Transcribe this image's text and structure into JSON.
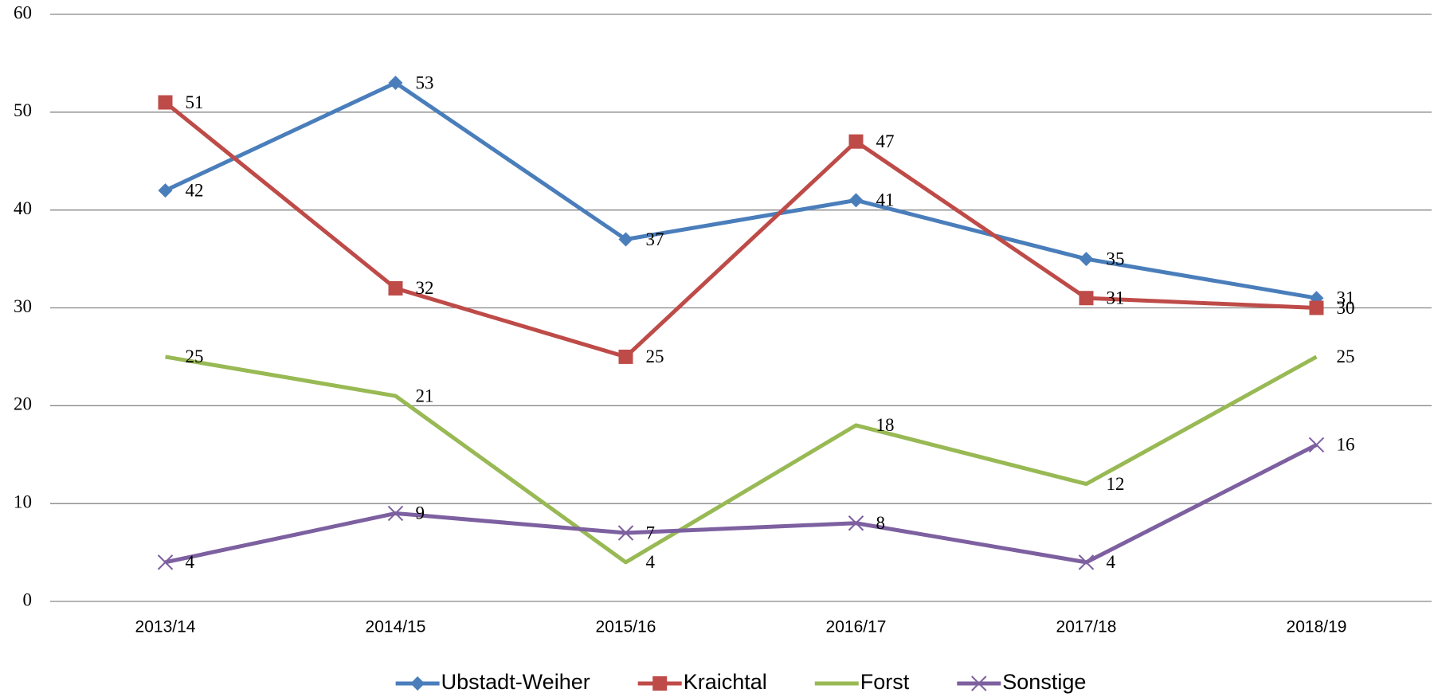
{
  "chart_data": {
    "type": "line",
    "categories": [
      "2013/14",
      "2014/15",
      "2015/16",
      "2016/17",
      "2017/18",
      "2018/19"
    ],
    "series": [
      {
        "name": "Ubstadt-Weiher",
        "color": "#4a7ebb",
        "marker": "diamond",
        "values": [
          42,
          53,
          37,
          41,
          35,
          31
        ]
      },
      {
        "name": "Kraichtal",
        "color": "#be4b48",
        "marker": "square",
        "values": [
          51,
          32,
          25,
          47,
          31,
          30
        ]
      },
      {
        "name": "Forst",
        "color": "#98b954",
        "marker": "none",
        "values": [
          25,
          21,
          4,
          18,
          12,
          25
        ]
      },
      {
        "name": "Sonstige",
        "color": "#7d60a0",
        "marker": "x",
        "values": [
          4,
          9,
          7,
          8,
          4,
          16
        ]
      }
    ],
    "ylim": [
      0,
      60
    ],
    "yticks": [
      0,
      10,
      20,
      30,
      40,
      50,
      60
    ],
    "grid": true,
    "legend": "bottom"
  }
}
